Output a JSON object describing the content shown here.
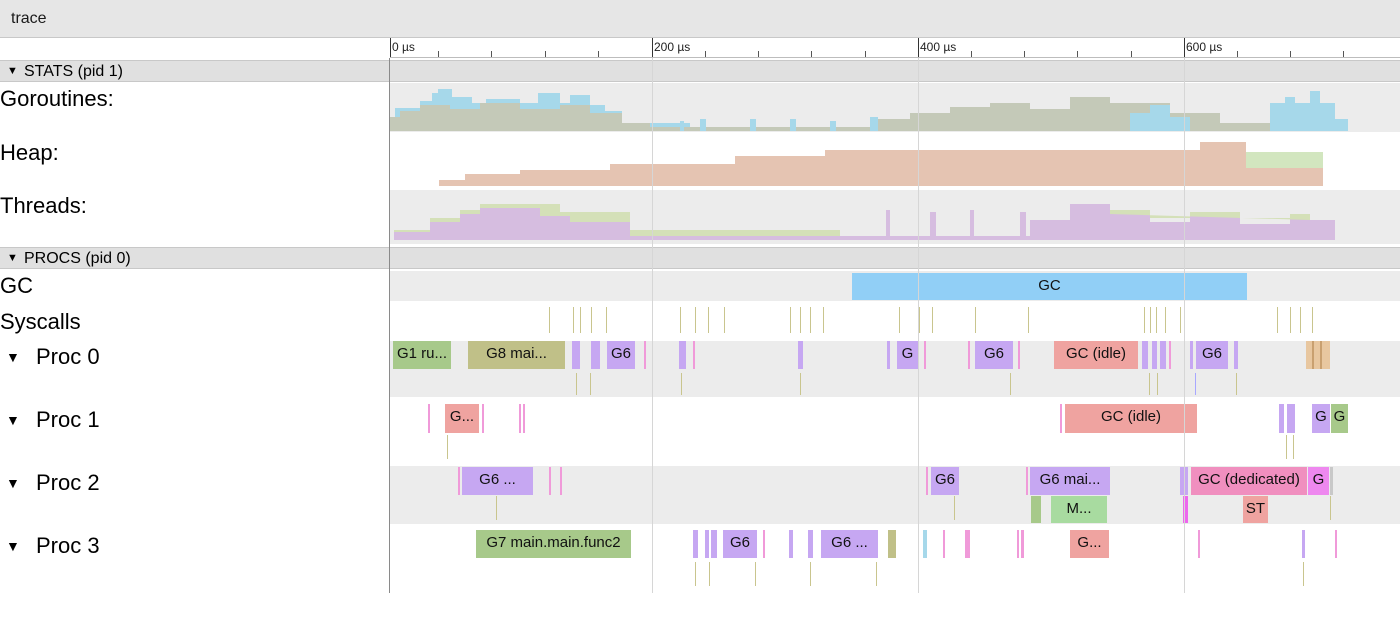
{
  "window": {
    "title": "trace"
  },
  "ruler": {
    "labels": [
      "0 µs",
      "200 µs",
      "400 µs",
      "600 µs"
    ]
  },
  "colors": {
    "goroutine_running": "#c4c9b8",
    "goroutine_runnable": "#a6d8ea",
    "heap_alloc": "#e5c4b2",
    "heap_next_gc": "#d2e6bf",
    "threads_running": "#d6bde0",
    "threads_syscall": "#d4e0b8",
    "gc": "#91cff6",
    "gc_idle": "#efa3a0",
    "g_green": "#a7c98a",
    "g_olive": "#c0c088",
    "g_purple": "#c6a7f2",
    "g_pink": "#f09ad9",
    "syscall_tick": "#c9c58e"
  },
  "stats_section": {
    "label": "STATS (pid 1)",
    "rows": [
      "Goroutines:",
      "Heap:",
      "Threads:"
    ]
  },
  "procs_section": {
    "label": "PROCS (pid 0)",
    "gc_label": "GC",
    "syscalls_label": "Syscalls",
    "gc_slice": "GC",
    "procs": [
      {
        "name": "Proc 0",
        "slices": [
          "G1 ru...",
          "G8 mai...",
          "G6",
          "G",
          "G6",
          "GC (idle)",
          "G6"
        ]
      },
      {
        "name": "Proc 1",
        "slices": [
          "G...",
          "GC (idle)",
          "G",
          "G"
        ]
      },
      {
        "name": "Proc 2",
        "slices": [
          "G6 ...",
          "G6",
          "G6 mai...",
          "GC (dedicated)",
          "G",
          "M...",
          "ST"
        ]
      },
      {
        "name": "Proc 3",
        "slices": [
          "G7 main.main.func2",
          "G6",
          "G6 ...",
          "G..."
        ]
      }
    ]
  }
}
